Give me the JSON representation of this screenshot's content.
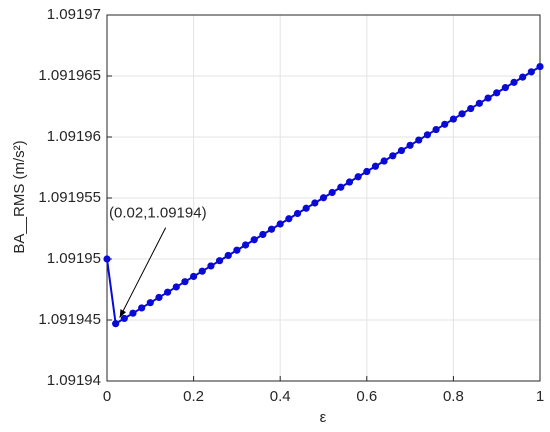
{
  "chart_data": {
    "type": "line",
    "xlabel": "ε",
    "ylabel": "BA__RMS (m/s²)",
    "annotation": "(0.02,1.09194)",
    "x": [
      0,
      0.02,
      0.04,
      0.06,
      0.08,
      0.1,
      0.12,
      0.14,
      0.16,
      0.18,
      0.2,
      0.22,
      0.24,
      0.26,
      0.28,
      0.3,
      0.32,
      0.34,
      0.36,
      0.38,
      0.4,
      0.42,
      0.44,
      0.46,
      0.48,
      0.5,
      0.52,
      0.54,
      0.56,
      0.58,
      0.6,
      0.62,
      0.64,
      0.66,
      0.68,
      0.7,
      0.72,
      0.74,
      0.76,
      0.78,
      0.8,
      0.82,
      0.84,
      0.86,
      0.88,
      0.9,
      0.92,
      0.94,
      0.96,
      0.98,
      1
    ],
    "series": [
      {
        "color": "#0a0ad6",
        "values": [
          1.09195,
          1.0919447,
          1.09194513,
          1.09194556,
          1.09194599,
          1.09194642,
          1.09194685,
          1.09194728,
          1.09194771,
          1.09194814,
          1.09194857,
          1.091949,
          1.09194943,
          1.09194986,
          1.09195029,
          1.09195072,
          1.09195115,
          1.09195158,
          1.09195201,
          1.09195244,
          1.09195287,
          1.0919533,
          1.09195373,
          1.09195416,
          1.09195459,
          1.09195502,
          1.09195545,
          1.09195588,
          1.09195631,
          1.09195674,
          1.09195717,
          1.0919576,
          1.09195803,
          1.09195846,
          1.09195889,
          1.09195932,
          1.09195975,
          1.09196018,
          1.09196061,
          1.09196104,
          1.09196147,
          1.0919619,
          1.09196233,
          1.09196276,
          1.09196319,
          1.09196362,
          1.09196405,
          1.09196448,
          1.09196491,
          1.09196534,
          1.09196577
        ]
      }
    ],
    "xlim": [
      0,
      1
    ],
    "xticks": [
      0,
      0.2,
      0.4,
      0.6,
      0.8,
      1
    ],
    "ylim": [
      1.09194,
      1.09197
    ],
    "yticks": [
      1.09194,
      1.091945,
      1.09195,
      1.091955,
      1.09196,
      1.091965,
      1.09197
    ],
    "grid": true
  }
}
